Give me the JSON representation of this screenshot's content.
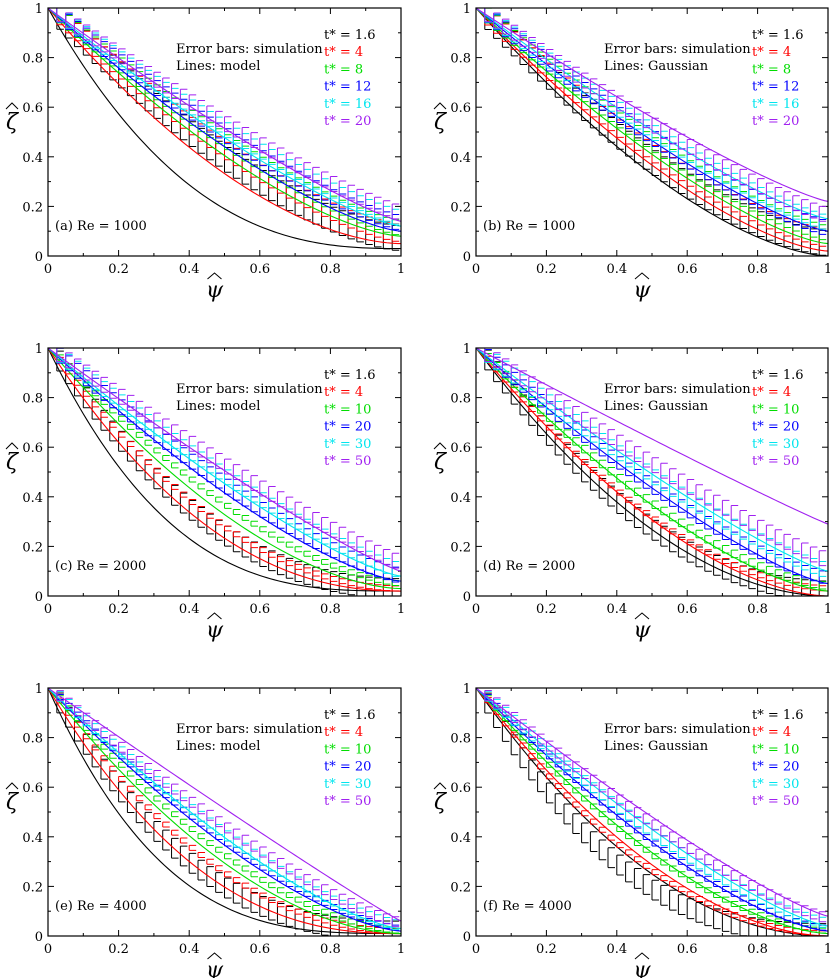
{
  "colors": {
    "black": "#000000",
    "red": "#ff0000",
    "green": "#00dd00",
    "blue": "#0000ff",
    "cyan": "#00e5ee",
    "purple": "#a020f0"
  },
  "chart_data": [
    {
      "type": "line",
      "label": "(a) Re = 1000",
      "note_line1": "Error bars: simulation",
      "note_line2": "Lines: model",
      "xlabel": "ψ",
      "ylabel": "ζ",
      "xlim": [
        0,
        1
      ],
      "ylim": [
        0,
        1
      ],
      "xticks": [
        "0",
        "0.2",
        "0.4",
        "0.6",
        "0.8",
        "1"
      ],
      "yticks": [
        "0",
        "0.2",
        "0.4",
        "0.6",
        "0.8",
        "1"
      ],
      "series": [
        {
          "name": "t* = 1.6",
          "color": "black",
          "model_end": 0.03,
          "model_p": 2.6,
          "sim_end": 0.07,
          "sim_p": 1.55,
          "err": 0.05
        },
        {
          "name": "t* = 4",
          "color": "red",
          "model_end": 0.05,
          "model_p": 1.75,
          "sim_end": 0.09,
          "sim_p": 1.45,
          "err": 0.035
        },
        {
          "name": "t* = 8",
          "color": "green",
          "model_end": 0.08,
          "model_p": 1.5,
          "sim_end": 0.11,
          "sim_p": 1.35,
          "err": 0.03
        },
        {
          "name": "t* = 12",
          "color": "blue",
          "model_end": 0.1,
          "model_p": 1.4,
          "sim_end": 0.13,
          "sim_p": 1.3,
          "err": 0.03
        },
        {
          "name": "t* = 16",
          "color": "cyan",
          "model_end": 0.12,
          "model_p": 1.3,
          "sim_end": 0.15,
          "sim_p": 1.25,
          "err": 0.03
        },
        {
          "name": "t* = 20",
          "color": "purple",
          "model_end": 0.14,
          "model_p": 1.2,
          "sim_end": 0.17,
          "sim_p": 1.2,
          "err": 0.03
        }
      ]
    },
    {
      "type": "line",
      "label": "(b) Re = 1000",
      "note_line1": "Error bars: simulation",
      "note_line2": "Lines: Gaussian",
      "xlabel": "ψ",
      "ylabel": "ζ",
      "xlim": [
        0,
        1
      ],
      "ylim": [
        0,
        1
      ],
      "xticks": [
        "0",
        "0.2",
        "0.4",
        "0.6",
        "0.8",
        "1"
      ],
      "yticks": [
        "0",
        "0.2",
        "0.4",
        "0.6",
        "0.8",
        "1"
      ],
      "series": [
        {
          "name": "t* = 1.6",
          "color": "black",
          "model_end": 0.0,
          "model_p": 1.6,
          "sim_end": 0.05,
          "sim_p": 1.55,
          "err": 0.05
        },
        {
          "name": "t* = 4",
          "color": "red",
          "model_end": 0.02,
          "model_p": 1.5,
          "sim_end": 0.07,
          "sim_p": 1.45,
          "err": 0.035
        },
        {
          "name": "t* = 8",
          "color": "green",
          "model_end": 0.05,
          "model_p": 1.4,
          "sim_end": 0.09,
          "sim_p": 1.35,
          "err": 0.03
        },
        {
          "name": "t* = 12",
          "color": "blue",
          "model_end": 0.1,
          "model_p": 1.3,
          "sim_end": 0.11,
          "sim_p": 1.3,
          "err": 0.03
        },
        {
          "name": "t* = 16",
          "color": "cyan",
          "model_end": 0.15,
          "model_p": 1.25,
          "sim_end": 0.13,
          "sim_p": 1.25,
          "err": 0.03
        },
        {
          "name": "t* = 20",
          "color": "purple",
          "model_end": 0.22,
          "model_p": 1.2,
          "sim_end": 0.16,
          "sim_p": 1.2,
          "err": 0.03
        }
      ]
    },
    {
      "type": "line",
      "label": "(c) Re = 2000",
      "note_line1": "Error bars: simulation",
      "note_line2": "Lines: model",
      "xlabel": "ψ",
      "ylabel": "ζ",
      "xlim": [
        0,
        1
      ],
      "ylim": [
        0,
        1
      ],
      "xticks": [
        "0",
        "0.2",
        "0.4",
        "0.6",
        "0.8",
        "1"
      ],
      "yticks": [
        "0",
        "0.2",
        "0.4",
        "0.6",
        "0.8",
        "1"
      ],
      "series": [
        {
          "name": "t* = 1.6",
          "color": "black",
          "model_end": 0.02,
          "model_p": 3.0,
          "sim_end": 0.03,
          "sim_p": 2.2,
          "err": 0.04
        },
        {
          "name": "t* = 4",
          "color": "red",
          "model_end": 0.02,
          "model_p": 2.2,
          "sim_end": 0.03,
          "sim_p": 2.0,
          "err": 0.01
        },
        {
          "name": "t* = 10",
          "color": "green",
          "model_end": 0.03,
          "model_p": 1.7,
          "sim_end": 0.05,
          "sim_p": 1.6,
          "err": 0.01
        },
        {
          "name": "t* = 20",
          "color": "blue",
          "model_end": 0.06,
          "model_p": 1.4,
          "sim_end": 0.08,
          "sim_p": 1.35,
          "err": 0.03
        },
        {
          "name": "t* = 30",
          "color": "cyan",
          "model_end": 0.08,
          "model_p": 1.3,
          "sim_end": 0.1,
          "sim_p": 1.25,
          "err": 0.03
        },
        {
          "name": "t* = 50",
          "color": "purple",
          "model_end": 0.1,
          "model_p": 1.15,
          "sim_end": 0.13,
          "sim_p": 1.15,
          "err": 0.03
        }
      ]
    },
    {
      "type": "line",
      "label": "(d) Re = 2000",
      "note_line1": "Error bars: simulation",
      "note_line2": "Lines: Gaussian",
      "xlabel": "ψ",
      "ylabel": "ζ",
      "xlim": [
        0,
        1
      ],
      "ylim": [
        0,
        1
      ],
      "xticks": [
        "0",
        "0.2",
        "0.4",
        "0.6",
        "0.8",
        "1"
      ],
      "yticks": [
        "0",
        "0.2",
        "0.4",
        "0.6",
        "0.8",
        "1"
      ],
      "series": [
        {
          "name": "t* = 1.6",
          "color": "black",
          "model_end": 0.0,
          "model_p": 1.9,
          "sim_end": 0.02,
          "sim_p": 2.0,
          "err": 0.04
        },
        {
          "name": "t* = 4",
          "color": "red",
          "model_end": 0.0,
          "model_p": 1.7,
          "sim_end": 0.03,
          "sim_p": 1.8,
          "err": 0.01
        },
        {
          "name": "t* = 10",
          "color": "green",
          "model_end": 0.02,
          "model_p": 1.5,
          "sim_end": 0.04,
          "sim_p": 1.55,
          "err": 0.015
        },
        {
          "name": "t* = 20",
          "color": "blue",
          "model_end": 0.05,
          "model_p": 1.3,
          "sim_end": 0.07,
          "sim_p": 1.35,
          "err": 0.025
        },
        {
          "name": "t* = 30",
          "color": "cyan",
          "model_end": 0.1,
          "model_p": 1.2,
          "sim_end": 0.1,
          "sim_p": 1.25,
          "err": 0.03
        },
        {
          "name": "t* = 50",
          "color": "purple",
          "model_end": 0.29,
          "model_p": 1.05,
          "sim_end": 0.14,
          "sim_p": 1.15,
          "err": 0.03
        }
      ]
    },
    {
      "type": "line",
      "label": "(e) Re = 4000",
      "note_line1": "Error bars: simulation",
      "note_line2": "Lines: model",
      "xlabel": "ψ",
      "ylabel": "ζ",
      "xlim": [
        0,
        1
      ],
      "ylim": [
        0,
        1
      ],
      "xticks": [
        "0",
        "0.2",
        "0.4",
        "0.6",
        "0.8",
        "1"
      ],
      "yticks": [
        "0",
        "0.2",
        "0.4",
        "0.6",
        "0.8",
        "1"
      ],
      "series": [
        {
          "name": "t* = 1.6",
          "color": "black",
          "model_end": 0.01,
          "model_p": 3.2,
          "sim_end": 0.02,
          "sim_p": 2.5,
          "err": 0.04
        },
        {
          "name": "t* = 4",
          "color": "red",
          "model_end": 0.01,
          "model_p": 2.4,
          "sim_end": 0.02,
          "sim_p": 2.1,
          "err": 0.01
        },
        {
          "name": "t* = 10",
          "color": "green",
          "model_end": 0.01,
          "model_p": 1.8,
          "sim_end": 0.02,
          "sim_p": 1.7,
          "err": 0.01
        },
        {
          "name": "t* = 20",
          "color": "blue",
          "model_end": 0.02,
          "model_p": 1.5,
          "sim_end": 0.03,
          "sim_p": 1.5,
          "err": 0.01
        },
        {
          "name": "t* = 30",
          "color": "cyan",
          "model_end": 0.03,
          "model_p": 1.4,
          "sim_end": 0.04,
          "sim_p": 1.4,
          "err": 0.02
        },
        {
          "name": "t* = 50",
          "color": "purple",
          "model_end": 0.06,
          "model_p": 1.05,
          "sim_end": 0.05,
          "sim_p": 1.3,
          "err": 0.02
        }
      ]
    },
    {
      "type": "line",
      "label": "(f) Re = 4000",
      "note_line1": "Error bars: simulation",
      "note_line2": "Lines: Gaussian",
      "xlabel": "ψ",
      "ylabel": "ζ",
      "xlim": [
        0,
        1
      ],
      "ylim": [
        0,
        1
      ],
      "xticks": [
        "0",
        "0.2",
        "0.4",
        "0.6",
        "0.8",
        "1"
      ],
      "yticks": [
        "0",
        "0.2",
        "0.4",
        "0.6",
        "0.8",
        "1"
      ],
      "series": [
        {
          "name": "t* = 1.6",
          "color": "black",
          "model_end": 0.0,
          "model_p": 2.0,
          "sim_end": 0.01,
          "sim_p": 2.5,
          "err": 0.04
        },
        {
          "name": "t* = 4",
          "color": "red",
          "model_end": 0.0,
          "model_p": 1.8,
          "sim_end": 0.01,
          "sim_p": 2.0,
          "err": 0.01
        },
        {
          "name": "t* = 10",
          "color": "green",
          "model_end": 0.01,
          "model_p": 1.6,
          "sim_end": 0.02,
          "sim_p": 1.7,
          "err": 0.01
        },
        {
          "name": "t* = 20",
          "color": "blue",
          "model_end": 0.02,
          "model_p": 1.45,
          "sim_end": 0.03,
          "sim_p": 1.5,
          "err": 0.01
        },
        {
          "name": "t* = 30",
          "color": "cyan",
          "model_end": 0.04,
          "model_p": 1.3,
          "sim_end": 0.05,
          "sim_p": 1.4,
          "err": 0.02
        },
        {
          "name": "t* = 50",
          "color": "purple",
          "model_end": 0.08,
          "model_p": 1.2,
          "sim_end": 0.07,
          "sim_p": 1.3,
          "err": 0.02
        }
      ]
    }
  ]
}
